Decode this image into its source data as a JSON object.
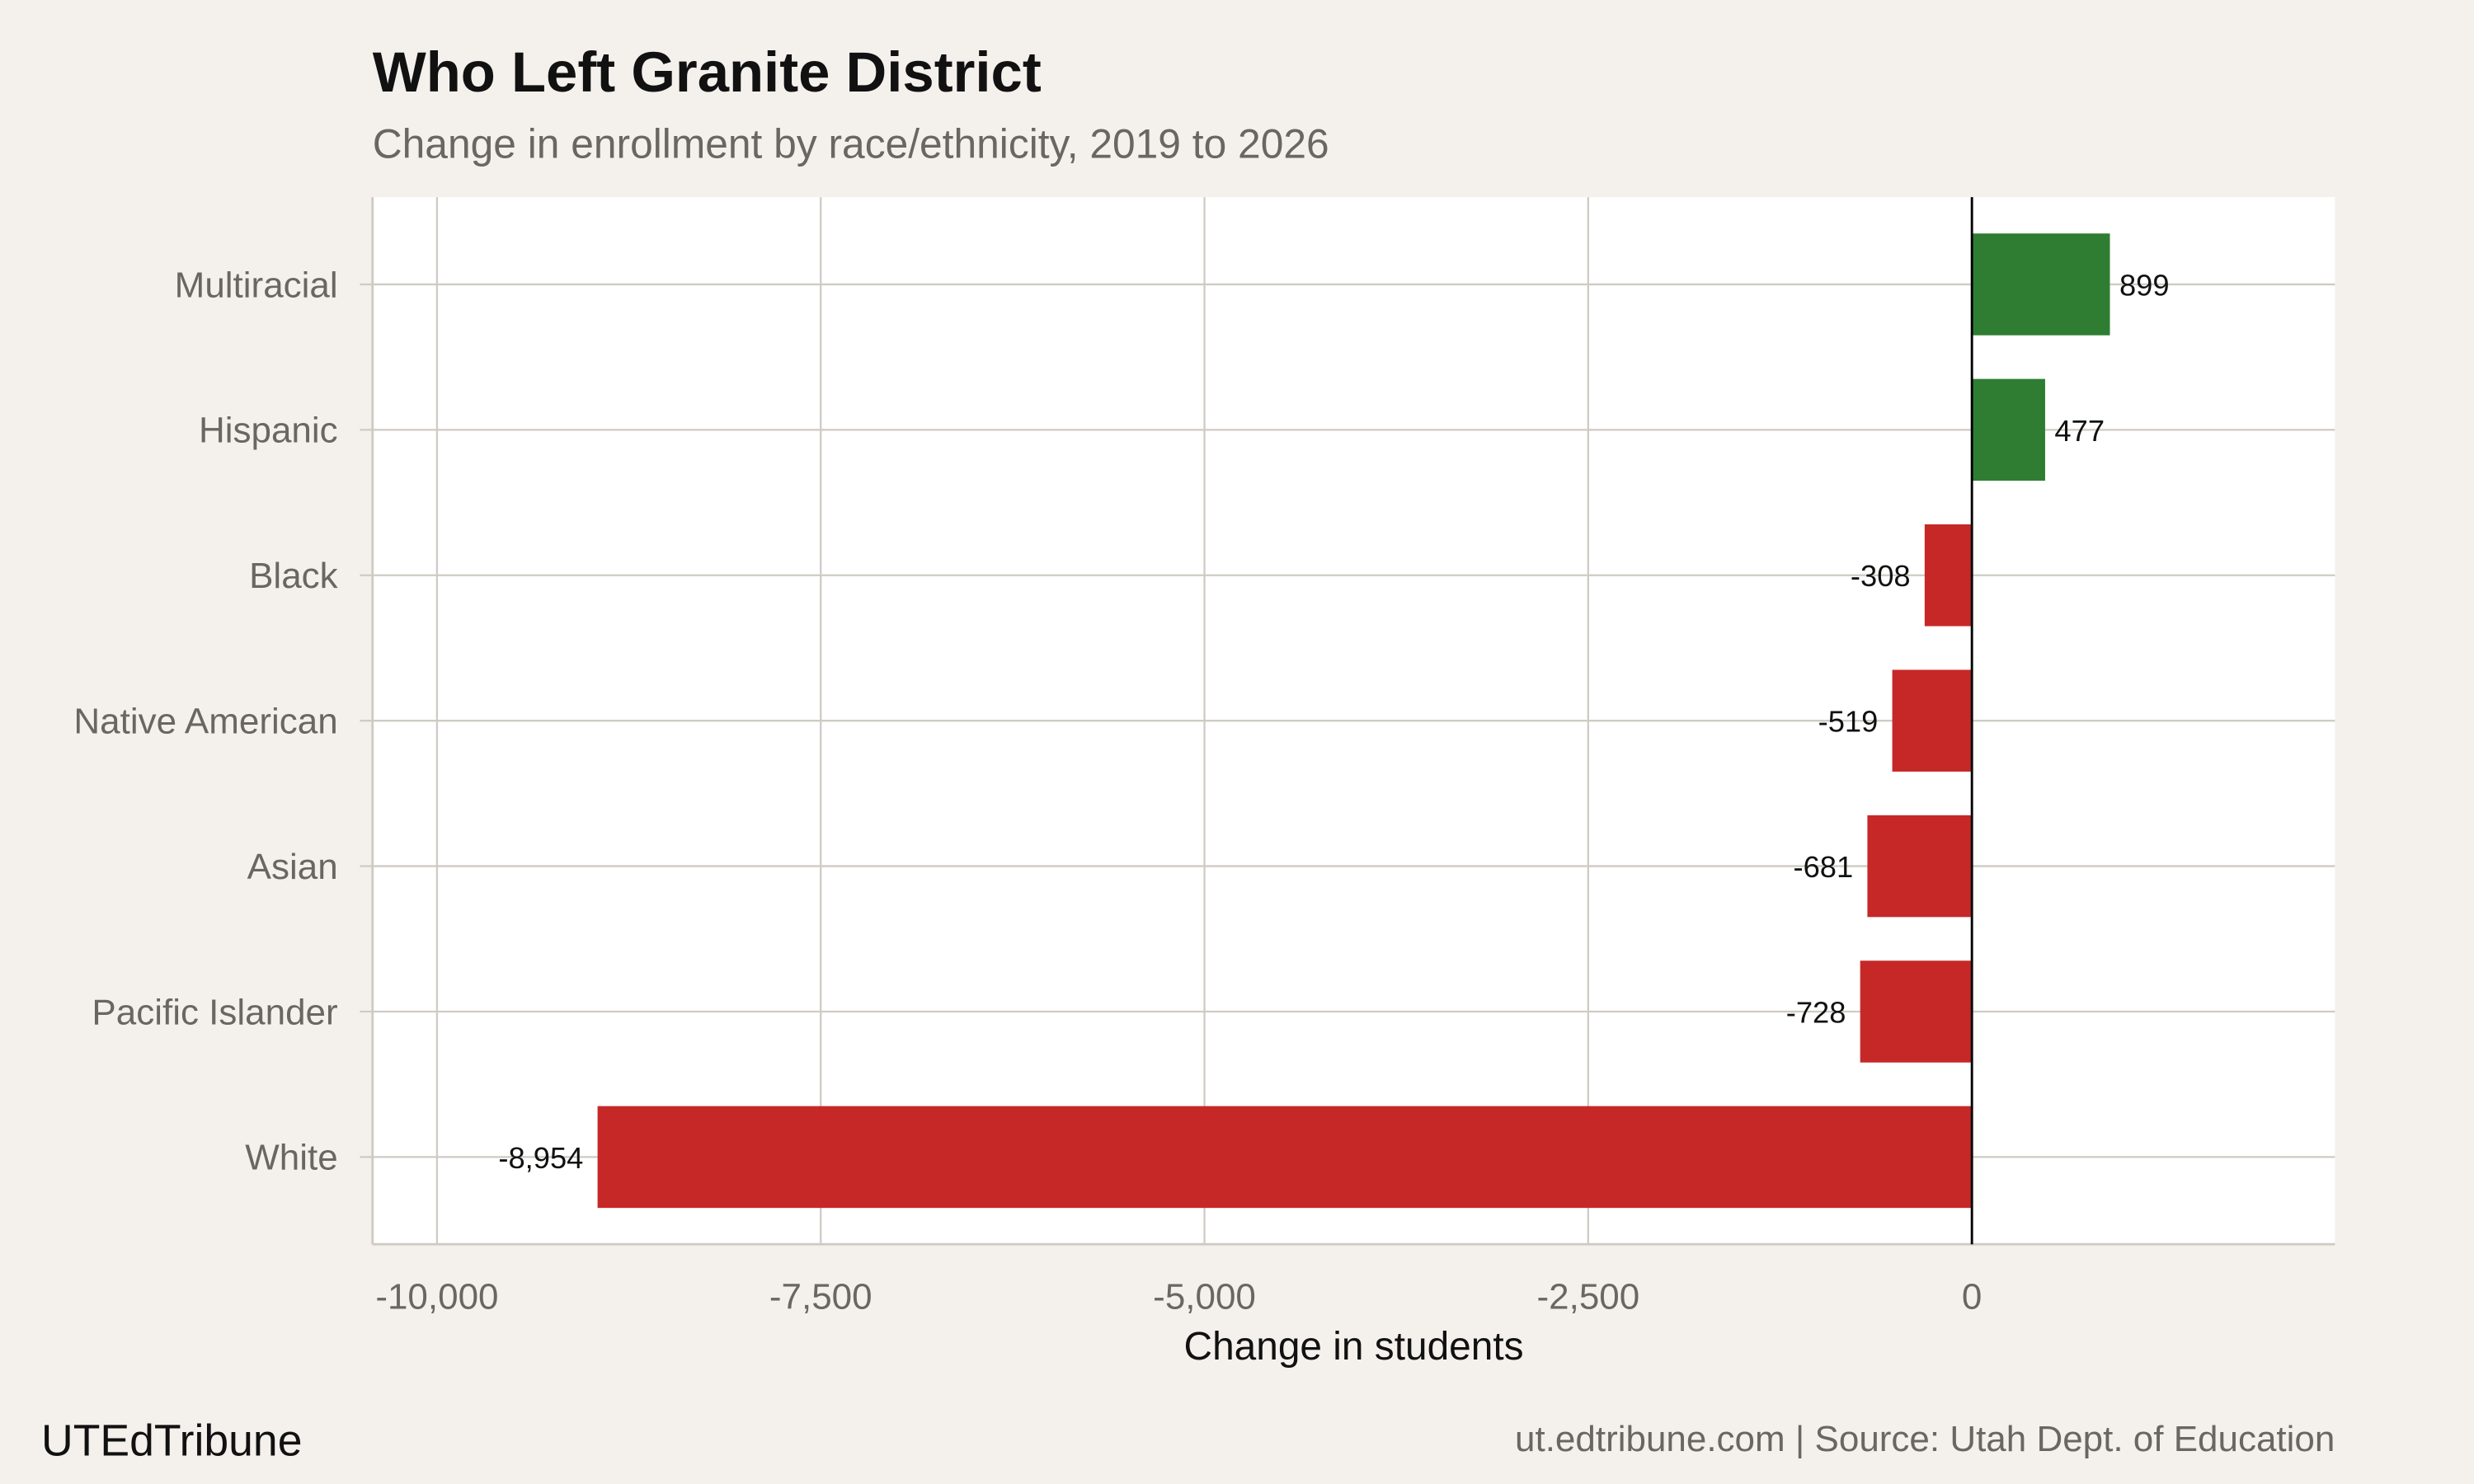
{
  "chart_data": {
    "type": "bar",
    "orientation": "horizontal",
    "title": "Who Left Granite District",
    "subtitle": "Change in enrollment by race/ethnicity, 2019 to 2026",
    "xlabel": "Change in students",
    "ylabel": "",
    "categories": [
      "Multiracial",
      "Hispanic",
      "Black",
      "Native American",
      "Asian",
      "Pacific Islander",
      "White"
    ],
    "values": [
      899,
      477,
      -308,
      -519,
      -681,
      -728,
      -8954
    ],
    "data_labels": [
      "899",
      "477",
      "-308",
      "-519",
      "-681",
      "-728",
      "-8,954"
    ],
    "xlim": [
      -10420,
      2365
    ],
    "xticks": [
      -10000,
      -7500,
      -5000,
      -2500,
      0
    ],
    "xtick_labels": [
      "-10,000",
      "-7,500",
      "-5,000",
      "-2,500",
      "0"
    ],
    "grid": true,
    "colors": {
      "positive": "#2e7d32",
      "negative": "#c62828",
      "background": "#f4f1ec",
      "panel": "#ffffff",
      "grid": "#cfcbc4"
    }
  },
  "footer": {
    "brand": "UTEdTribune",
    "caption": "ut.edtribune.com | Source: Utah Dept. of Education"
  }
}
